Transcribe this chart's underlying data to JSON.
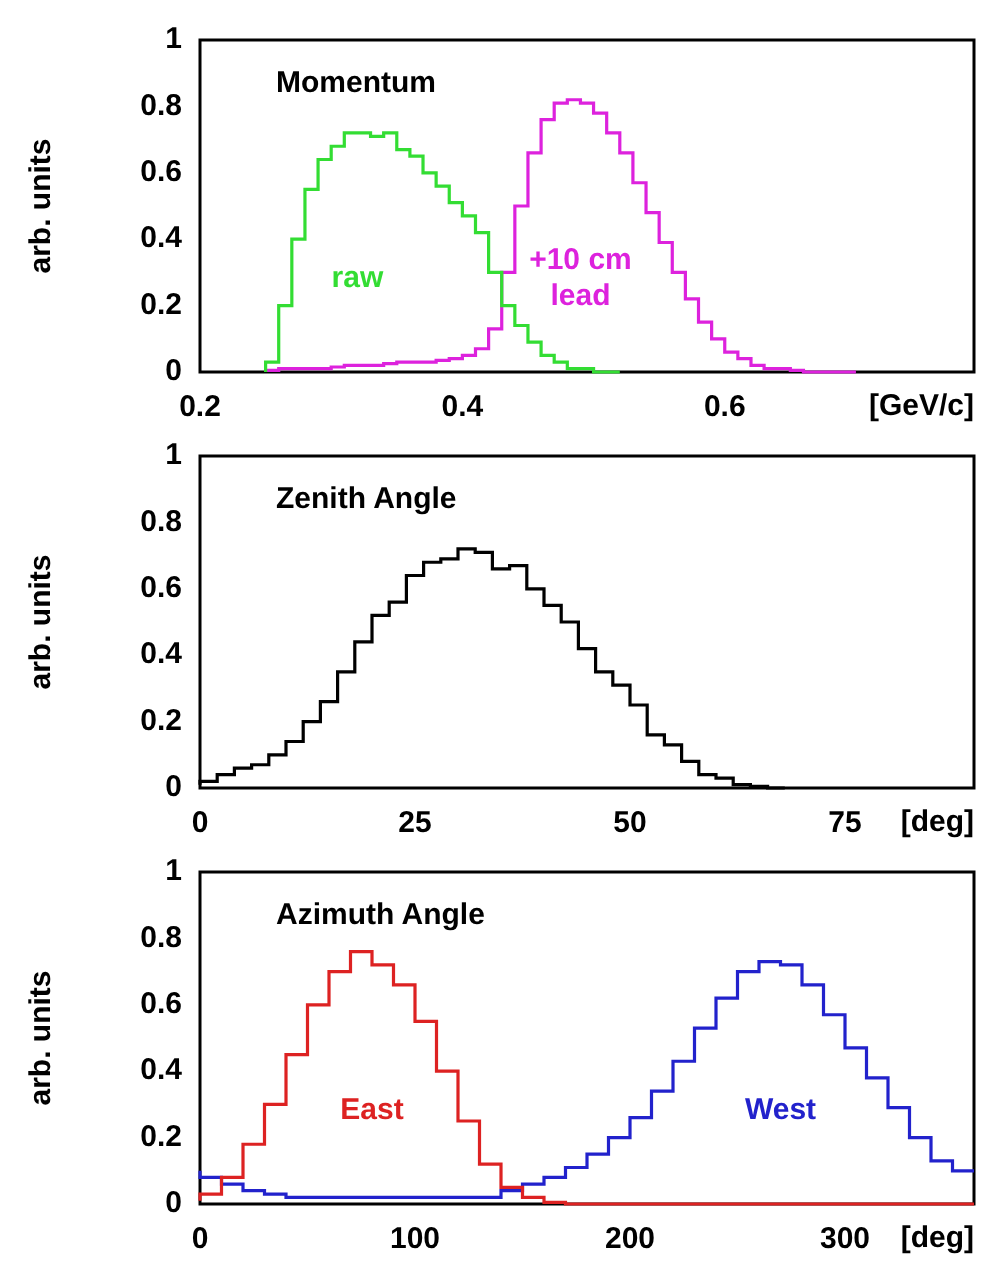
{
  "chart_data": [
    {
      "type": "step",
      "title": "Momentum",
      "xlabel": "[GeV/c]",
      "ylabel": "arb. units",
      "xlim": [
        0.2,
        0.79
      ],
      "xticks": [
        0.2,
        0.4,
        0.6
      ],
      "ylim": [
        0,
        1
      ],
      "yticks": [
        0,
        0.2,
        0.4,
        0.6,
        0.8,
        1
      ],
      "series": [
        {
          "name": "raw",
          "color": "#33dd33",
          "x": [
            0.25,
            0.26,
            0.27,
            0.28,
            0.29,
            0.3,
            0.31,
            0.32,
            0.33,
            0.34,
            0.35,
            0.36,
            0.37,
            0.38,
            0.39,
            0.4,
            0.41,
            0.42,
            0.43,
            0.44,
            0.45,
            0.46,
            0.47,
            0.48,
            0.49,
            0.5,
            0.51,
            0.52
          ],
          "values": [
            0,
            0.03,
            0.2,
            0.4,
            0.55,
            0.64,
            0.68,
            0.72,
            0.72,
            0.71,
            0.72,
            0.67,
            0.65,
            0.6,
            0.56,
            0.51,
            0.47,
            0.42,
            0.3,
            0.2,
            0.14,
            0.09,
            0.05,
            0.03,
            0.01,
            0.01,
            0,
            0
          ]
        },
        {
          "name": "+10 cm lead",
          "color": "#dd22dd",
          "x": [
            0.25,
            0.26,
            0.27,
            0.28,
            0.29,
            0.3,
            0.31,
            0.32,
            0.33,
            0.34,
            0.35,
            0.36,
            0.37,
            0.38,
            0.39,
            0.4,
            0.41,
            0.42,
            0.43,
            0.44,
            0.45,
            0.46,
            0.47,
            0.48,
            0.49,
            0.5,
            0.51,
            0.52,
            0.53,
            0.54,
            0.55,
            0.56,
            0.57,
            0.58,
            0.59,
            0.6,
            0.61,
            0.62,
            0.63,
            0.64,
            0.65,
            0.66,
            0.67,
            0.68,
            0.69,
            0.7
          ],
          "values": [
            0,
            0.005,
            0.01,
            0.01,
            0.01,
            0.01,
            0.015,
            0.02,
            0.02,
            0.02,
            0.025,
            0.03,
            0.03,
            0.03,
            0.035,
            0.04,
            0.05,
            0.07,
            0.13,
            0.3,
            0.5,
            0.66,
            0.76,
            0.81,
            0.82,
            0.81,
            0.78,
            0.72,
            0.66,
            0.57,
            0.48,
            0.39,
            0.3,
            0.22,
            0.15,
            0.1,
            0.06,
            0.04,
            0.02,
            0.01,
            0.01,
            0.005,
            0,
            0,
            0,
            0
          ]
        }
      ]
    },
    {
      "type": "step",
      "title": "Zenith Angle",
      "xlabel": "[deg]",
      "ylabel": "arb. units",
      "xlim": [
        0,
        90
      ],
      "xticks": [
        0,
        25,
        50,
        75
      ],
      "ylim": [
        0,
        1
      ],
      "yticks": [
        0,
        0.2,
        0.4,
        0.6,
        0.8,
        1
      ],
      "series": [
        {
          "color": "#000000",
          "x": [
            0,
            2,
            4,
            6,
            8,
            10,
            12,
            14,
            16,
            18,
            20,
            22,
            24,
            26,
            28,
            30,
            32,
            34,
            36,
            38,
            40,
            42,
            44,
            46,
            48,
            50,
            52,
            54,
            56,
            58,
            60,
            62,
            64,
            66,
            68
          ],
          "values": [
            0.01,
            0.02,
            0.04,
            0.06,
            0.07,
            0.1,
            0.14,
            0.2,
            0.26,
            0.35,
            0.44,
            0.52,
            0.56,
            0.64,
            0.68,
            0.69,
            0.72,
            0.71,
            0.66,
            0.67,
            0.6,
            0.55,
            0.5,
            0.42,
            0.35,
            0.31,
            0.25,
            0.16,
            0.13,
            0.08,
            0.04,
            0.03,
            0.01,
            0.005,
            0
          ]
        }
      ]
    },
    {
      "type": "step",
      "title": "Azimuth Angle",
      "xlabel": "[deg]",
      "ylabel": "arb. units",
      "xlim": [
        0,
        360
      ],
      "xticks": [
        0,
        100,
        200,
        300
      ],
      "ylim": [
        0,
        1
      ],
      "yticks": [
        0,
        0.2,
        0.4,
        0.6,
        0.8,
        1
      ],
      "series": [
        {
          "name": "East",
          "color": "#dd2222",
          "x": [
            0,
            10,
            20,
            30,
            40,
            50,
            60,
            70,
            80,
            90,
            100,
            110,
            120,
            130,
            140,
            150,
            160,
            170,
            180,
            190,
            200,
            210,
            220,
            230,
            240,
            250,
            260,
            270,
            280,
            290,
            300,
            310,
            320,
            330,
            340,
            350,
            360
          ],
          "values": [
            0.01,
            0.03,
            0.08,
            0.18,
            0.3,
            0.45,
            0.6,
            0.7,
            0.76,
            0.72,
            0.66,
            0.55,
            0.4,
            0.25,
            0.12,
            0.05,
            0.02,
            0.005,
            0,
            0,
            0,
            0,
            0,
            0,
            0,
            0,
            0,
            0,
            0,
            0,
            0,
            0,
            0,
            0,
            0,
            0,
            0
          ]
        },
        {
          "name": "West",
          "color": "#2222cc",
          "x": [
            0,
            10,
            20,
            30,
            40,
            50,
            60,
            70,
            80,
            90,
            100,
            110,
            120,
            130,
            140,
            150,
            160,
            170,
            180,
            190,
            200,
            210,
            220,
            230,
            240,
            250,
            260,
            270,
            280,
            290,
            300,
            310,
            320,
            330,
            340,
            350,
            360
          ],
          "values": [
            0.1,
            0.08,
            0.06,
            0.04,
            0.03,
            0.02,
            0.02,
            0.02,
            0.02,
            0.02,
            0.02,
            0.02,
            0.02,
            0.02,
            0.02,
            0.04,
            0.06,
            0.08,
            0.11,
            0.15,
            0.2,
            0.26,
            0.34,
            0.43,
            0.53,
            0.62,
            0.7,
            0.73,
            0.72,
            0.66,
            0.57,
            0.47,
            0.38,
            0.29,
            0.2,
            0.13,
            0.1
          ]
        }
      ]
    }
  ]
}
